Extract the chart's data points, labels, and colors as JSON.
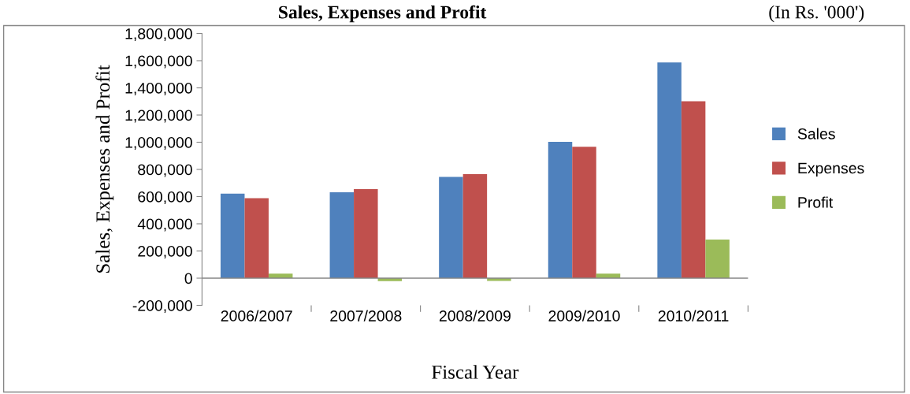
{
  "chart_data": {
    "type": "bar",
    "title": "Sales, Expenses and Profit",
    "annotations": [
      "(In Rs. '000')"
    ],
    "xlabel": "Fiscal Year",
    "ylabel": "Sales, Expenses and Profit",
    "categories": [
      "2006/2007",
      "2007/2008",
      "2008/2009",
      "2009/2010",
      "2010/2011"
    ],
    "series": [
      {
        "name": "Sales",
        "color": "#4f81bd",
        "values": [
          622000,
          632000,
          745000,
          1003000,
          1587000
        ]
      },
      {
        "name": "Expenses",
        "color": "#c0504d",
        "values": [
          589000,
          655000,
          765000,
          967000,
          1301000
        ]
      },
      {
        "name": "Profit",
        "color": "#9bbb59",
        "values": [
          33000,
          -22000,
          -20000,
          33000,
          284000
        ]
      }
    ],
    "ylim": [
      -200000,
      1800000
    ],
    "yticks": [
      {
        "value": -200000,
        "label": "-200,000"
      },
      {
        "value": 0,
        "label": "0"
      },
      {
        "value": 200000,
        "label": "200,000"
      },
      {
        "value": 400000,
        "label": "400,000"
      },
      {
        "value": 600000,
        "label": "600,000"
      },
      {
        "value": 800000,
        "label": "800,000"
      },
      {
        "value": 1000000,
        "label": "1,000,000"
      },
      {
        "value": 1200000,
        "label": "1,200,000"
      },
      {
        "value": 1400000,
        "label": "1,400,000"
      },
      {
        "value": 1600000,
        "label": "1,600,000"
      },
      {
        "value": 1800000,
        "label": "1,800,000"
      }
    ],
    "grid": false,
    "legend": "right"
  }
}
